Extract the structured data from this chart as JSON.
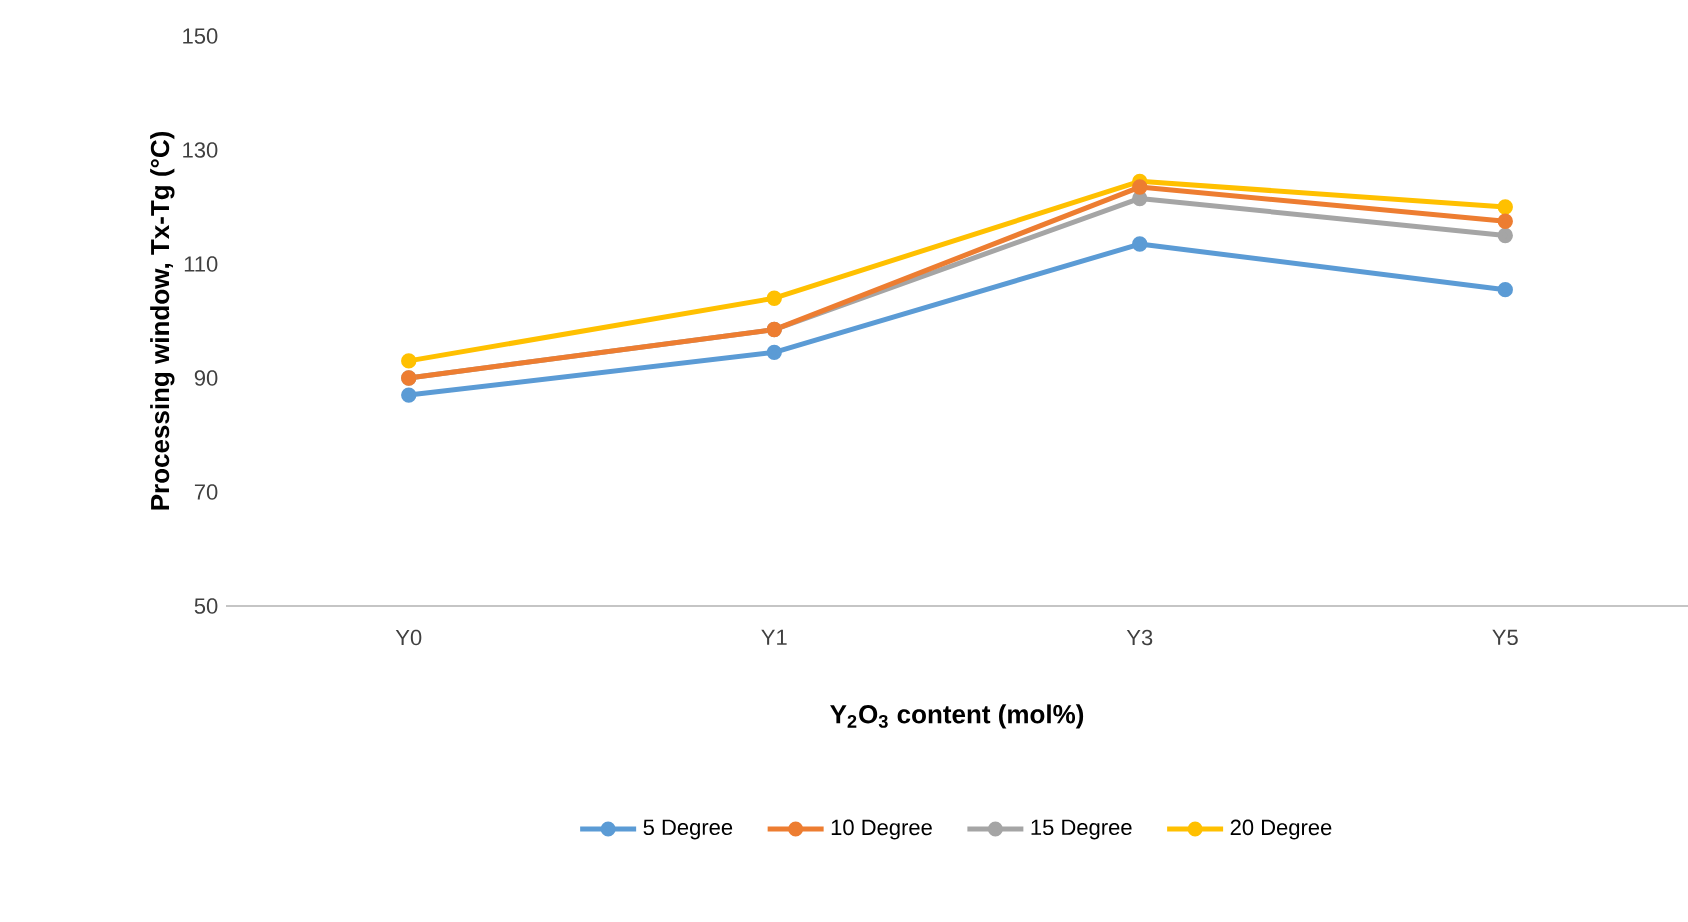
{
  "chart_data": {
    "type": "line",
    "xlabel": "Y$_{2}$O$_{3}$ content (mol%)",
    "ylabel": "Processing window, Tx-Tg (°C)",
    "categories": [
      "Y0",
      "Y1",
      "Y3",
      "Y5"
    ],
    "series": [
      {
        "name": "5 Degree",
        "color": "#5b9bd5",
        "values": [
          87,
          94.5,
          113.5,
          105.5
        ]
      },
      {
        "name": "10 Degree",
        "color": "#ed7d31",
        "values": [
          90,
          98.5,
          123.5,
          117.5
        ]
      },
      {
        "name": "15 Degree",
        "color": "#a5a5a5",
        "values": [
          90,
          98.5,
          121.5,
          115
        ]
      },
      {
        "name": "20 Degree",
        "color": "#ffc000",
        "values": [
          93,
          104,
          124.5,
          120
        ]
      }
    ],
    "ylim": [
      50,
      150
    ],
    "yticks": [
      50,
      70,
      90,
      110,
      130,
      150
    ],
    "grid": false,
    "legend": "bottom",
    "marker": "circle",
    "line_style": "solid"
  }
}
